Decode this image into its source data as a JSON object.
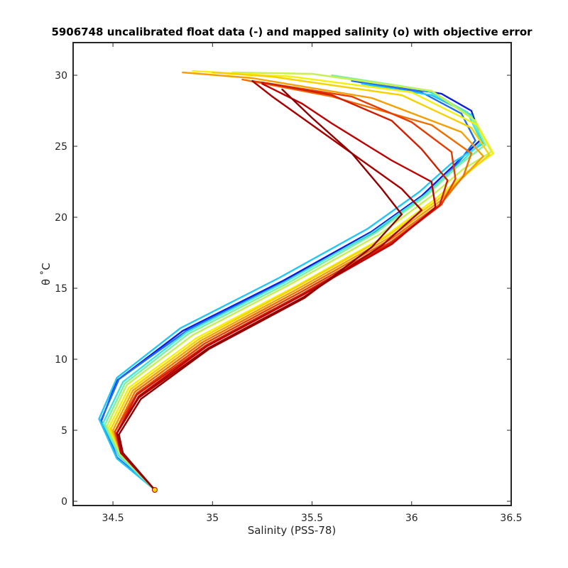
{
  "chart_data": {
    "type": "line",
    "title": "5906748 uncalibrated float data (-) and mapped salinity (o) with objective error",
    "xlabel": "Salinity (PSS-78)",
    "ylabel": "θ ˚C",
    "xlim": [
      34.3,
      36.5
    ],
    "ylim": [
      -0.3,
      32.3
    ],
    "xticks": [
      34.5,
      35,
      35.5,
      36,
      36.5
    ],
    "xtick_labels": [
      "34.5",
      "35",
      "35.5",
      "36",
      "36.5"
    ],
    "yticks": [
      0,
      5,
      10,
      15,
      20,
      25,
      30
    ],
    "ytick_labels": [
      "0",
      "5",
      "10",
      "15",
      "20",
      "25",
      "30"
    ],
    "grid": false,
    "colormap": "jet (early profiles blue, late profiles dark red)",
    "series": [
      {
        "color": "#0a1ee0",
        "x": [
          34.71,
          34.53,
          34.44,
          34.52,
          34.85,
          35.35,
          35.8,
          36.05,
          36.2,
          36.35,
          36.3,
          36.15,
          35.8
        ],
        "y": [
          0.8,
          3.2,
          5.6,
          8.5,
          12.0,
          15.5,
          19.0,
          21.5,
          23.5,
          25.5,
          27.5,
          28.7,
          29.5
        ]
      },
      {
        "color": "#1e6cf0",
        "x": [
          34.71,
          34.52,
          34.44,
          34.53,
          34.88,
          35.38,
          35.83,
          36.08,
          36.22,
          36.32,
          36.25,
          36.05,
          35.7
        ],
        "y": [
          0.8,
          3.1,
          5.7,
          8.6,
          12.1,
          15.6,
          19.1,
          21.6,
          23.6,
          25.4,
          27.3,
          28.8,
          29.6
        ]
      },
      {
        "color": "#20c8f5",
        "x": [
          34.71,
          34.52,
          34.43,
          34.52,
          34.84,
          35.33,
          35.78,
          36.04,
          36.2,
          36.36,
          36.3,
          36.1,
          35.75
        ],
        "y": [
          0.8,
          3.0,
          5.8,
          8.7,
          12.2,
          15.7,
          19.2,
          21.8,
          23.8,
          25.2,
          27.2,
          28.6,
          29.4
        ]
      },
      {
        "color": "#40e6dc",
        "x": [
          34.71,
          34.53,
          34.45,
          34.55,
          34.87,
          35.36,
          35.8,
          36.06,
          36.22,
          36.35,
          36.28,
          36.08,
          35.72
        ],
        "y": [
          0.8,
          3.2,
          5.5,
          8.4,
          11.9,
          15.4,
          18.9,
          21.5,
          23.5,
          25.3,
          27.4,
          28.9,
          29.7
        ]
      },
      {
        "color": "#80f0a0",
        "x": [
          34.71,
          34.53,
          34.46,
          34.56,
          34.88,
          35.37,
          35.82,
          36.08,
          36.24,
          36.37,
          36.3,
          36.1,
          35.6
        ],
        "y": [
          0.8,
          3.3,
          5.4,
          8.3,
          11.8,
          15.3,
          18.9,
          21.6,
          23.7,
          25.1,
          27.1,
          28.9,
          30.0
        ]
      },
      {
        "color": "#c8f050",
        "x": [
          34.71,
          34.54,
          34.47,
          34.57,
          34.9,
          35.38,
          35.84,
          36.1,
          36.26,
          36.4,
          36.32,
          36.1,
          35.5,
          35.1
        ],
        "y": [
          0.8,
          3.3,
          5.3,
          8.2,
          11.7,
          15.2,
          18.8,
          21.5,
          23.4,
          24.6,
          26.8,
          28.9,
          30.1,
          30.2
        ]
      },
      {
        "color": "#f5f010",
        "x": [
          34.71,
          34.54,
          34.48,
          34.58,
          34.92,
          35.4,
          35.86,
          36.12,
          36.28,
          36.41,
          36.33,
          36.0,
          35.4,
          34.9
        ],
        "y": [
          0.8,
          3.4,
          5.2,
          8.0,
          11.5,
          15.0,
          18.6,
          21.3,
          23.2,
          24.5,
          26.5,
          28.8,
          29.9,
          30.3
        ]
      },
      {
        "color": "#f5d200",
        "x": [
          34.71,
          34.54,
          34.49,
          34.59,
          34.93,
          35.41,
          35.87,
          36.13,
          36.28,
          36.39,
          36.3,
          35.95,
          35.3,
          35.0
        ],
        "y": [
          0.8,
          3.4,
          5.1,
          7.9,
          11.4,
          15.0,
          18.6,
          21.2,
          23.1,
          24.4,
          26.3,
          28.6,
          29.9,
          30.2
        ]
      },
      {
        "color": "#f5a000",
        "x": [
          34.71,
          34.54,
          34.5,
          34.6,
          34.94,
          35.42,
          35.88,
          36.14,
          36.27,
          36.36,
          36.25,
          35.8,
          35.2,
          34.85
        ],
        "y": [
          0.8,
          3.4,
          5.0,
          7.8,
          11.3,
          14.9,
          18.5,
          21.1,
          23.0,
          24.3,
          26.0,
          28.4,
          29.8,
          30.2
        ]
      },
      {
        "color": "#f06e00",
        "x": [
          34.71,
          34.54,
          34.51,
          34.61,
          34.95,
          35.43,
          35.89,
          36.15,
          36.26,
          36.3,
          36.1,
          35.6,
          35.15
        ],
        "y": [
          0.8,
          3.4,
          4.9,
          7.7,
          11.2,
          14.8,
          18.4,
          21.0,
          22.9,
          24.5,
          26.5,
          28.5,
          29.7
        ]
      },
      {
        "color": "#e63c00",
        "x": [
          34.71,
          34.54,
          34.51,
          34.62,
          34.96,
          35.44,
          35.9,
          36.15,
          36.22,
          36.2,
          36.0,
          35.7,
          35.2
        ],
        "y": [
          0.8,
          3.4,
          4.9,
          7.6,
          11.1,
          14.7,
          18.3,
          20.9,
          22.7,
          24.6,
          26.7,
          28.5,
          29.6
        ]
      },
      {
        "color": "#d21e00",
        "x": [
          34.71,
          34.54,
          34.52,
          34.62,
          34.97,
          35.45,
          35.9,
          36.14,
          36.18,
          36.05,
          35.9,
          35.6,
          35.25
        ],
        "y": [
          0.8,
          3.4,
          4.8,
          7.5,
          11.0,
          14.6,
          18.2,
          20.8,
          22.6,
          24.8,
          26.8,
          28.6,
          29.5
        ]
      },
      {
        "color": "#c00000",
        "x": [
          34.71,
          34.54,
          34.52,
          34.63,
          34.97,
          35.45,
          35.9,
          36.12,
          36.1,
          35.9,
          35.6,
          35.45,
          35.25
        ],
        "y": [
          0.8,
          3.4,
          4.8,
          7.4,
          10.9,
          14.5,
          18.1,
          20.7,
          22.5,
          24.0,
          26.6,
          28.0,
          29.4
        ]
      },
      {
        "color": "#a80000",
        "x": [
          34.71,
          34.55,
          34.52,
          34.63,
          34.98,
          35.46,
          35.85,
          36.05,
          35.95,
          35.8,
          35.55,
          35.3,
          35.2
        ],
        "y": [
          0.8,
          3.4,
          4.8,
          7.3,
          10.8,
          14.4,
          18.0,
          20.5,
          22.0,
          23.5,
          26.0,
          28.5,
          29.6
        ]
      },
      {
        "color": "#900000",
        "x": [
          34.71,
          34.55,
          34.53,
          34.64,
          34.98,
          35.46,
          35.8,
          35.95,
          35.85,
          35.7,
          35.5,
          35.35
        ],
        "y": [
          0.8,
          3.4,
          4.7,
          7.2,
          10.7,
          14.3,
          17.9,
          20.2,
          22.0,
          24.5,
          27.0,
          29.0
        ]
      }
    ]
  }
}
